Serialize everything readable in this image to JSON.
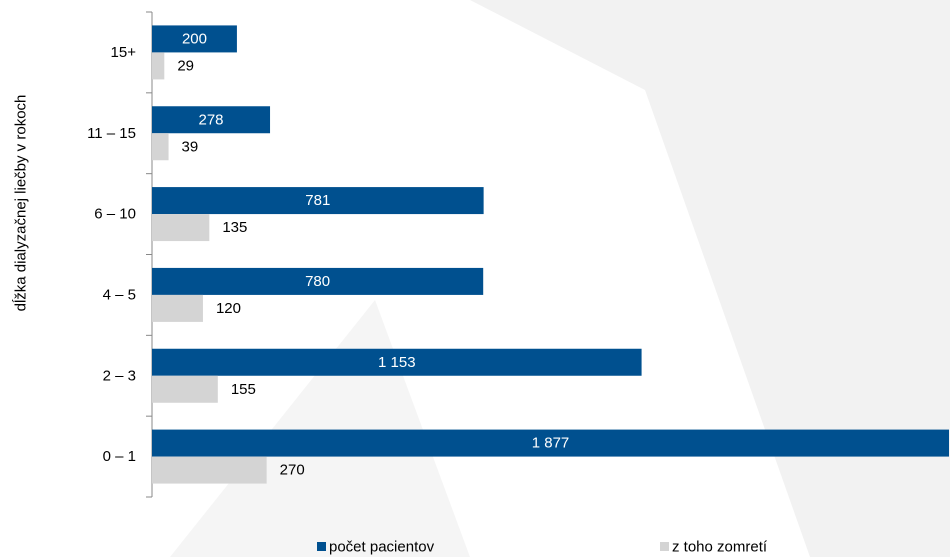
{
  "chart_data": {
    "type": "bar",
    "orientation": "horizontal",
    "title": "",
    "ylabel": "dĺžka dialyzačnej liečby v rokoch",
    "xlabel": "",
    "categories": [
      "15+",
      "11 – 15",
      "6 – 10",
      "4 – 5",
      "2 – 3",
      "0 – 1"
    ],
    "series": [
      {
        "name": "počet pacientov",
        "values": [
          200,
          278,
          781,
          780,
          1153,
          1877
        ],
        "labels": [
          "200",
          "278",
          "781",
          "780",
          "1 153",
          "1 877"
        ],
        "color": "#00508f"
      },
      {
        "name": "z toho zomretí",
        "values": [
          29,
          39,
          135,
          120,
          155,
          270
        ],
        "labels": [
          "29",
          "39",
          "135",
          "120",
          "155",
          "270"
        ],
        "color": "#d4d4d4"
      }
    ],
    "xlim": [
      0,
      1877
    ],
    "grid": false,
    "legend_position": "bottom"
  }
}
